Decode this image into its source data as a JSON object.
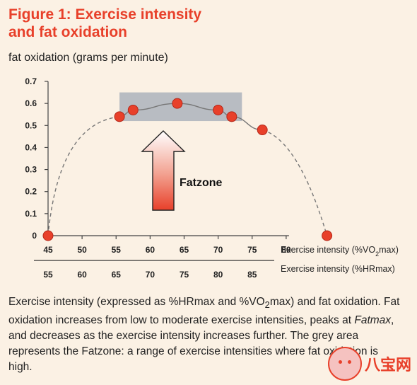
{
  "figure": {
    "title_line1": "Figure 1: Exercise intensity",
    "title_line2": "and fat oxidation"
  },
  "chart_data": {
    "type": "scatter",
    "title": "Figure 1: Exercise intensity and fat oxidation",
    "ylabel": "fat oxidation (grams per minute)",
    "xlabel": "Exercise intensity (%VO2max)",
    "xlabel_secondary": "Exercise intensity (%HRmax)",
    "xlim": [
      45,
      85
    ],
    "ylim": [
      0,
      0.7
    ],
    "x_ticks": [
      45,
      50,
      55,
      60,
      65,
      70,
      75,
      80
    ],
    "y_ticks": [
      0,
      0.1,
      0.2,
      0.3,
      0.4,
      0.5,
      0.6,
      0.7
    ],
    "y_tick_labels": [
      "0",
      "0.1",
      "0.2",
      "0.3",
      "0.4",
      "0.5",
      "0.6",
      "0.7"
    ],
    "hr_ticks": [
      {
        "vo2": 45,
        "label": "55"
      },
      {
        "vo2": 50,
        "label": "60"
      },
      {
        "vo2": 55,
        "label": "65"
      },
      {
        "vo2": 60,
        "label": "70"
      },
      {
        "vo2": 65,
        "label": "75"
      },
      {
        "vo2": 70,
        "label": "80"
      },
      {
        "vo2": 75,
        "label": "85"
      }
    ],
    "series": [
      {
        "points": [
          {
            "x": 45,
            "y": 0.0
          },
          {
            "x": 55.5,
            "y": 0.54
          },
          {
            "x": 57.5,
            "y": 0.57
          },
          {
            "x": 64,
            "y": 0.6
          },
          {
            "x": 70,
            "y": 0.57
          },
          {
            "x": 72,
            "y": 0.54
          },
          {
            "x": 76.5,
            "y": 0.48
          },
          {
            "x": 86,
            "y": 0.0
          }
        ]
      }
    ],
    "fatzone": {
      "x_start": 55.5,
      "x_end": 73.5,
      "y_start": 0.52,
      "y_end": 0.65
    },
    "annotation": "Fatzone",
    "colors": {
      "point": "#e8402a",
      "zone": "#b8bcc2",
      "curve": "#777777",
      "accent": "#e8402a"
    }
  },
  "caption": {
    "part1": "Exercise intensity (expressed as %HRmax and %VO",
    "sub": "2",
    "part2": "max) and fat oxidation. Fat oxidation increases from low to moderate exercise intensities, peaks at ",
    "em": "Fatmax",
    "part3": ", and decreases as the exercise intensity increases further. The grey area represents the Fatzone: a range of exercise intensities where fat oxidation is high."
  },
  "watermark": {
    "icon": "face-logo-icon",
    "text": "八宝网"
  }
}
